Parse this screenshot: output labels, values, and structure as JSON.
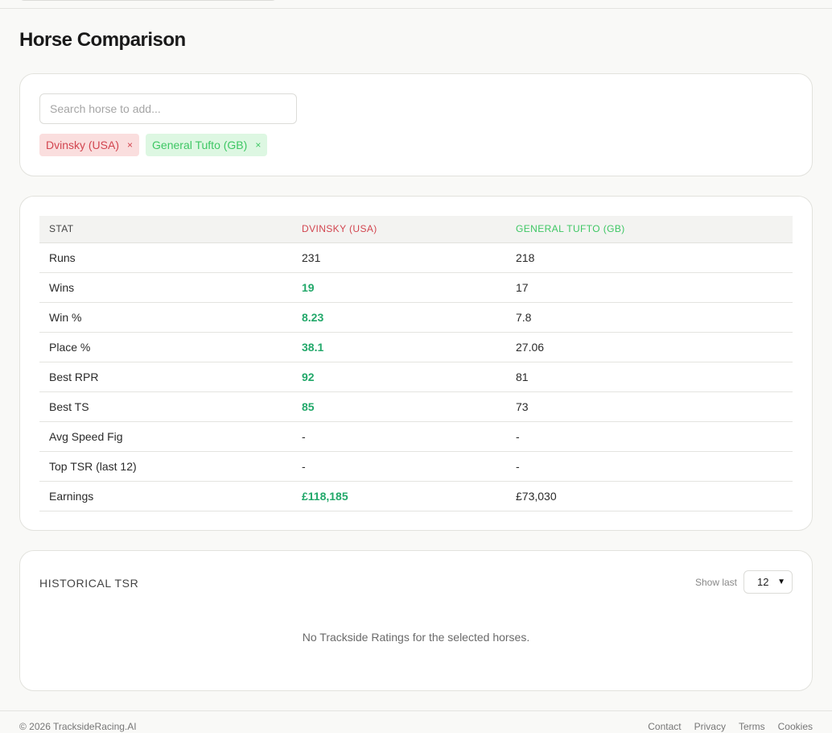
{
  "page": {
    "title": "Horse Comparison"
  },
  "search": {
    "placeholder": "Search horse to add...",
    "chips": [
      {
        "label": "Dvinsky (USA)",
        "remove": "×",
        "color": "#d2454f"
      },
      {
        "label": "General Tufto (GB)",
        "remove": "×",
        "color": "#3ec764"
      }
    ]
  },
  "table": {
    "headers": [
      "STAT",
      "DVINSKY (USA)",
      "GENERAL TUFTO (GB)"
    ],
    "rows": [
      {
        "stat": "Runs",
        "a": "231",
        "b": "218",
        "a_win": false
      },
      {
        "stat": "Wins",
        "a": "19",
        "b": "17",
        "a_win": true
      },
      {
        "stat": "Win %",
        "a": "8.23",
        "b": "7.8",
        "a_win": true
      },
      {
        "stat": "Place %",
        "a": "38.1",
        "b": "27.06",
        "a_win": true
      },
      {
        "stat": "Best RPR",
        "a": "92",
        "b": "81",
        "a_win": true
      },
      {
        "stat": "Best TS",
        "a": "85",
        "b": "73",
        "a_win": true
      },
      {
        "stat": "Avg Speed Fig",
        "a": "-",
        "b": "-",
        "a_win": false
      },
      {
        "stat": "Top TSR (last 12)",
        "a": "-",
        "b": "-",
        "a_win": false
      },
      {
        "stat": "Earnings",
        "a": "£118,185",
        "b": "£73,030",
        "a_win": true
      }
    ],
    "win_color": "#22a86a"
  },
  "tsr": {
    "title": "HISTORICAL TSR",
    "show_last_label": "Show last",
    "show_last_value": "12",
    "empty_message": "No Trackside Ratings for the selected horses."
  },
  "footer": {
    "copyright": "© 2026 TracksideRacing.AI",
    "links": [
      "Contact",
      "Privacy",
      "Terms",
      "Cookies"
    ]
  }
}
